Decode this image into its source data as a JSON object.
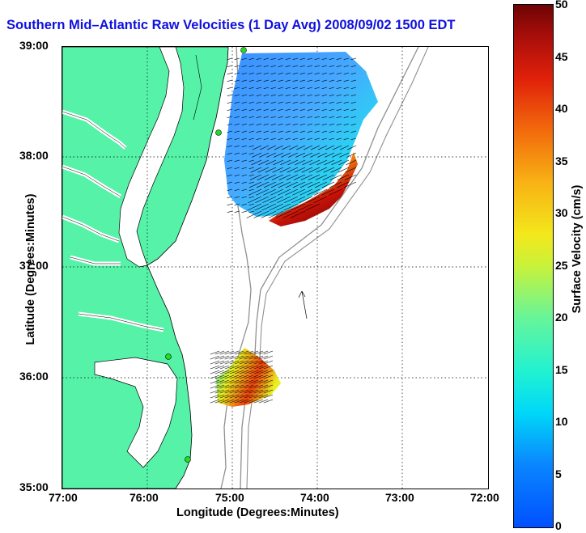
{
  "title": "Southern Mid–Atlantic Raw Velocities (1 Day Avg) 2008/09/02 1500 EDT",
  "xlabel": "Longitude (Degrees:Minutes)",
  "ylabel": "Latitude (Degrees:Minutes)",
  "colorbar_label": "Surface Velocity (cm/s)",
  "x_ticks": [
    "77:00",
    "76:00",
    "75:00",
    "74:00",
    "73:00",
    "72:00"
  ],
  "y_ticks": [
    "39:00",
    "38:00",
    "37:00",
    "36:00",
    "35:00"
  ],
  "colorbar_ticks": [
    "50",
    "45",
    "40",
    "35",
    "30",
    "25",
    "20",
    "15",
    "10",
    "5",
    "0"
  ],
  "colors": {
    "land": "#55f2a8",
    "title": "#1010e0",
    "station": "#22dd22"
  },
  "map": {
    "lon_range": [
      -77,
      -72
    ],
    "lat_range": [
      35,
      39
    ],
    "colorbar_range": [
      0,
      50
    ],
    "grid": "dotted"
  }
}
